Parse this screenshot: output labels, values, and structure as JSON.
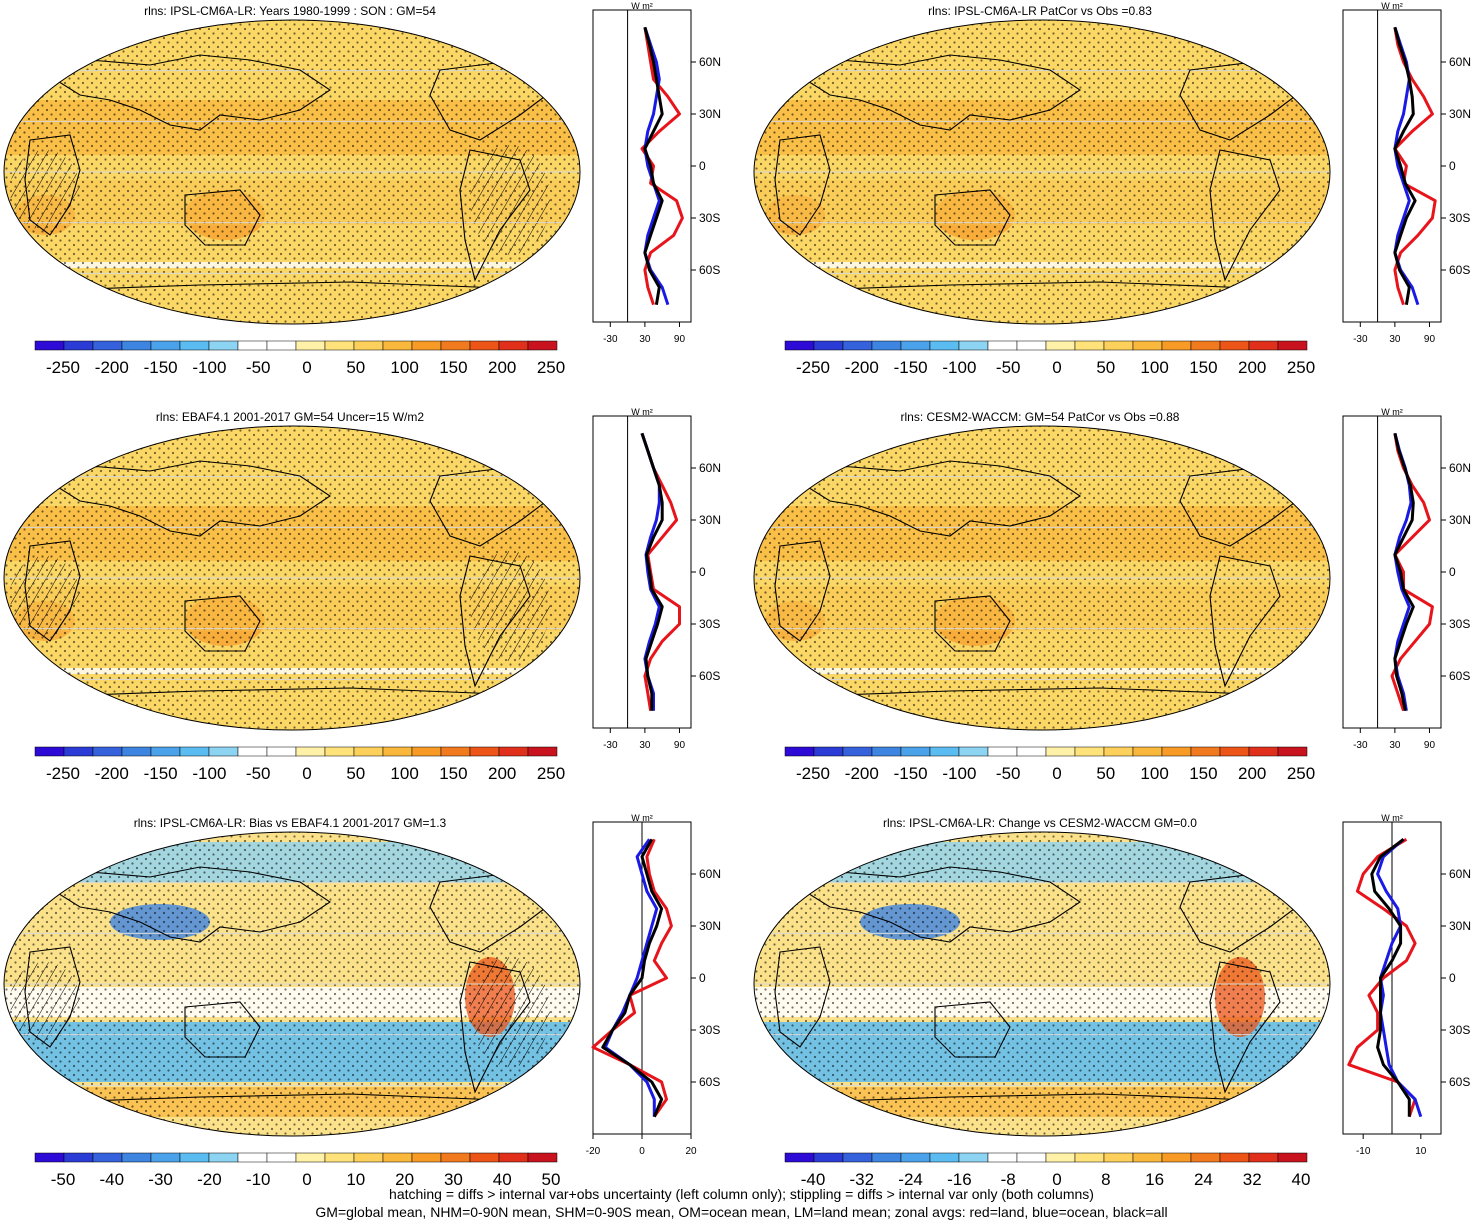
{
  "footer": {
    "line1": "hatching = diffs > internal var+obs uncertainty (left column only); stippling = diffs > internal var only (both columns)",
    "line2": "GM=global mean, NHM=0-90N mean, SHM=0-90S mean, OM=ocean mean, LM=land mean; zonal avgs: red=land, blue=ocean, black=all"
  },
  "colors": {
    "land": "#e8141b",
    "ocean": "#1a1ae6",
    "all": "#000000",
    "palette_absolute": [
      "#2e0ad6",
      "#2a3bd6",
      "#3562dc",
      "#3e85e2",
      "#4aa3ea",
      "#5bbcf2",
      "#8dd3f2",
      "#ffffff",
      "#ffffff",
      "#fff1a8",
      "#ffe27a",
      "#fcd05a",
      "#f9b73c",
      "#f79a26",
      "#f27a1e",
      "#ec5418",
      "#e0301c",
      "#c8121e"
    ],
    "palette_diff": [
      "#2e0ad6",
      "#2a3bd6",
      "#3562dc",
      "#3e85e2",
      "#4aa3ea",
      "#5bbcf2",
      "#8dd3f2",
      "#ffffff",
      "#ffffff",
      "#fff1a8",
      "#ffe27a",
      "#fcd05a",
      "#f9b73c",
      "#f79a26",
      "#f27a1e",
      "#ec5418",
      "#e0301c",
      "#c8121e"
    ]
  },
  "chart_data": [
    {
      "type": "heatmap",
      "title": "rlns: IPSL-CM6A-LR: Years 1980-1999 : SON : GM=54",
      "colorbar_ticks": [
        "-250",
        "-200",
        "-150",
        "-100",
        "-50",
        "0",
        "50",
        "100",
        "150",
        "200",
        "250"
      ],
      "zonal": {
        "x_ticks": [
          "-30",
          "30",
          "90"
        ],
        "xlim": [
          -60,
          110
        ],
        "lat_ticks": [
          "60N",
          "30N",
          "0",
          "30S",
          "60S"
        ],
        "unit": "W m²",
        "lat": [
          80,
          70,
          60,
          50,
          40,
          30,
          20,
          10,
          0,
          -10,
          -20,
          -30,
          -40,
          -50,
          -60,
          -70,
          -80
        ],
        "land": [
          30,
          35,
          40,
          45,
          70,
          90,
          55,
          25,
          45,
          40,
          85,
          95,
          80,
          40,
          30,
          35,
          45
        ],
        "ocean": [
          30,
          40,
          50,
          55,
          50,
          45,
          35,
          30,
          35,
          45,
          55,
          45,
          35,
          30,
          40,
          60,
          70
        ],
        "all": [
          30,
          38,
          45,
          50,
          55,
          60,
          45,
          30,
          40,
          45,
          60,
          50,
          40,
          30,
          38,
          55,
          50
        ]
      }
    },
    {
      "type": "heatmap",
      "title": "rlns: IPSL-CM6A-LR PatCor vs Obs =0.83",
      "colorbar_ticks": [
        "-250",
        "-200",
        "-150",
        "-100",
        "-50",
        "0",
        "50",
        "100",
        "150",
        "200",
        "250"
      ],
      "zonal": {
        "x_ticks": [
          "-30",
          "30",
          "90"
        ],
        "xlim": [
          -60,
          110
        ],
        "lat_ticks": [
          "60N",
          "30N",
          "0",
          "30S",
          "60S"
        ],
        "unit": "W m²",
        "lat": [
          80,
          70,
          60,
          50,
          40,
          30,
          20,
          10,
          0,
          -10,
          -20,
          -30,
          -40,
          -50,
          -60,
          -70,
          -80
        ],
        "land": [
          30,
          35,
          45,
          60,
          80,
          95,
          60,
          30,
          50,
          45,
          100,
          95,
          70,
          40,
          30,
          35,
          45
        ],
        "ocean": [
          30,
          40,
          50,
          55,
          50,
          45,
          35,
          30,
          35,
          45,
          55,
          45,
          35,
          30,
          40,
          60,
          70
        ],
        "all": [
          30,
          38,
          48,
          55,
          60,
          62,
          45,
          30,
          40,
          48,
          65,
          50,
          40,
          30,
          38,
          55,
          50
        ]
      }
    },
    {
      "type": "heatmap",
      "title": "rlns: EBAF4.1 2001-2017 GM=54 Uncer=15 W/m2",
      "colorbar_ticks": [
        "-250",
        "-200",
        "-150",
        "-100",
        "-50",
        "0",
        "50",
        "100",
        "150",
        "200",
        "250"
      ],
      "zonal": {
        "x_ticks": [
          "-30",
          "30",
          "90"
        ],
        "xlim": [
          -60,
          110
        ],
        "lat_ticks": [
          "60N",
          "30N",
          "0",
          "30S",
          "60S"
        ],
        "unit": "W m²",
        "lat": [
          80,
          70,
          60,
          50,
          40,
          30,
          20,
          10,
          0,
          -10,
          -20,
          -30,
          -40,
          -50,
          -60,
          -70,
          -80
        ],
        "land": [
          25,
          35,
          45,
          60,
          75,
          85,
          60,
          35,
          40,
          45,
          90,
          90,
          60,
          40,
          30,
          35,
          40
        ],
        "ocean": [
          25,
          35,
          45,
          55,
          55,
          50,
          40,
          32,
          35,
          40,
          55,
          48,
          38,
          30,
          35,
          45,
          45
        ],
        "all": [
          25,
          35,
          45,
          55,
          60,
          60,
          45,
          33,
          38,
          42,
          60,
          52,
          42,
          32,
          35,
          42,
          42
        ]
      }
    },
    {
      "type": "heatmap",
      "title": "rlns: CESM2-WACCM: GM=54 PatCor vs Obs =0.88",
      "colorbar_ticks": [
        "-250",
        "-200",
        "-150",
        "-100",
        "-50",
        "0",
        "50",
        "100",
        "150",
        "200",
        "250"
      ],
      "zonal": {
        "x_ticks": [
          "-30",
          "30",
          "90"
        ],
        "xlim": [
          -60,
          110
        ],
        "lat_ticks": [
          "60N",
          "30N",
          "0",
          "30S",
          "60S"
        ],
        "unit": "W m²",
        "lat": [
          80,
          70,
          60,
          50,
          40,
          30,
          20,
          10,
          0,
          -10,
          -20,
          -30,
          -40,
          -50,
          -60,
          -70,
          -80
        ],
        "land": [
          30,
          35,
          45,
          60,
          80,
          90,
          60,
          30,
          45,
          45,
          95,
          90,
          65,
          40,
          25,
          35,
          45
        ],
        "ocean": [
          30,
          38,
          48,
          55,
          58,
          50,
          38,
          30,
          35,
          42,
          55,
          45,
          35,
          30,
          35,
          45,
          50
        ],
        "all": [
          30,
          37,
          47,
          57,
          62,
          60,
          45,
          30,
          40,
          45,
          62,
          50,
          40,
          30,
          33,
          42,
          48
        ]
      }
    },
    {
      "type": "heatmap",
      "title": "rlns: IPSL-CM6A-LR: Bias vs EBAF4.1 2001-2017  GM=1.3",
      "colorbar_ticks": [
        "-50",
        "-40",
        "-30",
        "-20",
        "-10",
        "0",
        "10",
        "20",
        "30",
        "40",
        "50"
      ],
      "zonal": {
        "x_ticks": [
          "-20",
          "0",
          "20"
        ],
        "xlim": [
          -20,
          20
        ],
        "lat_ticks": [
          "60N",
          "30N",
          "0",
          "30S",
          "60S"
        ],
        "unit": "W m²",
        "lat": [
          80,
          70,
          60,
          50,
          40,
          30,
          20,
          10,
          0,
          -10,
          -20,
          -30,
          -40,
          -50,
          -60,
          -70,
          -80
        ],
        "land": [
          5,
          2,
          3,
          5,
          10,
          12,
          8,
          5,
          10,
          -5,
          -3,
          -12,
          -20,
          -5,
          8,
          10,
          5
        ],
        "ocean": [
          3,
          -2,
          0,
          2,
          6,
          4,
          2,
          0,
          -2,
          -5,
          -8,
          -12,
          -15,
          -5,
          2,
          5,
          5
        ],
        "all": [
          4,
          0,
          2,
          4,
          8,
          6,
          3,
          1,
          0,
          -5,
          -7,
          -12,
          -16,
          -5,
          4,
          8,
          5
        ]
      }
    },
    {
      "type": "heatmap",
      "title": "rlns: IPSL-CM6A-LR: Change vs CESM2-WACCM GM=0.0",
      "colorbar_ticks": [
        "-40",
        "-32",
        "-24",
        "-16",
        "-8",
        "0",
        "8",
        "16",
        "24",
        "32",
        "40"
      ],
      "zonal": {
        "x_ticks": [
          "-10",
          "10"
        ],
        "xlim": [
          -17,
          17
        ],
        "lat_ticks": [
          "60N",
          "30N",
          "0",
          "30S",
          "60S"
        ],
        "unit": "W m²",
        "lat": [
          80,
          70,
          60,
          50,
          40,
          30,
          20,
          10,
          0,
          -10,
          -20,
          -30,
          -40,
          -50,
          -60,
          -70,
          -80
        ],
        "land": [
          5,
          -5,
          -10,
          -12,
          -3,
          5,
          8,
          5,
          -3,
          -8,
          -5,
          -5,
          -12,
          -15,
          2,
          8,
          6
        ],
        "ocean": [
          4,
          -3,
          -5,
          -2,
          2,
          3,
          0,
          -2,
          -4,
          -3,
          -4,
          -3,
          -2,
          -1,
          2,
          8,
          10
        ],
        "all": [
          4,
          -4,
          -7,
          -6,
          -1,
          3,
          3,
          0,
          -4,
          -4,
          -4,
          -4,
          -5,
          -3,
          2,
          6,
          6
        ]
      }
    }
  ]
}
